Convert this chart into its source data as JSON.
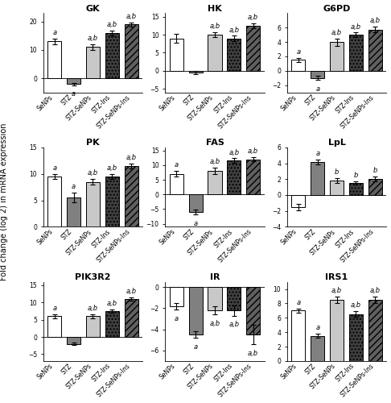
{
  "subplots": [
    {
      "title": "GK",
      "ylim": [
        -5,
        23
      ],
      "yticks": [
        0,
        10,
        20
      ],
      "values": [
        13,
        -2,
        11,
        16,
        19
      ],
      "errors": [
        1.0,
        0.4,
        0.9,
        0.8,
        0.8
      ],
      "annotations": [
        "a",
        "a",
        "a,b",
        "a,b",
        "a,b"
      ],
      "ann_neg": [
        false,
        true,
        false,
        false,
        false
      ]
    },
    {
      "title": "HK",
      "ylim": [
        -6,
        16
      ],
      "yticks": [
        -5,
        0,
        5,
        10,
        15
      ],
      "values": [
        9,
        -0.5,
        10,
        9,
        12.5
      ],
      "errors": [
        1.3,
        0.5,
        0.7,
        0.7,
        0.6
      ],
      "annotations": [
        "",
        "",
        "a,b",
        "a,b",
        "a,b"
      ],
      "ann_neg": [
        false,
        false,
        false,
        false,
        false
      ]
    },
    {
      "title": "G6PD",
      "ylim": [
        -3,
        8
      ],
      "yticks": [
        -2,
        0,
        2,
        4,
        6
      ],
      "values": [
        1.5,
        -1.0,
        4.0,
        5.0,
        5.7
      ],
      "errors": [
        0.25,
        0.3,
        0.5,
        0.3,
        0.4
      ],
      "annotations": [
        "a",
        "a",
        "a,b",
        "a,b",
        "a,b"
      ],
      "ann_neg": [
        false,
        true,
        false,
        false,
        false
      ]
    },
    {
      "title": "PK",
      "ylim": [
        0,
        15
      ],
      "yticks": [
        0,
        5,
        10,
        15
      ],
      "values": [
        9.5,
        5.5,
        8.5,
        9.5,
        11.5
      ],
      "errors": [
        0.5,
        0.9,
        0.5,
        0.5,
        0.5
      ],
      "annotations": [
        "a",
        "a",
        "a,b",
        "a,b",
        "a,b"
      ],
      "ann_neg": [
        false,
        false,
        false,
        false,
        false
      ]
    },
    {
      "title": "FAS",
      "ylim": [
        -11,
        16
      ],
      "yticks": [
        -10,
        -5,
        0,
        5,
        10,
        15
      ],
      "values": [
        7,
        -6,
        8,
        11.5,
        12
      ],
      "errors": [
        1.0,
        0.8,
        1.2,
        0.8,
        0.8
      ],
      "annotations": [
        "a",
        "a",
        "a,b",
        "a,b",
        "a,b"
      ],
      "ann_neg": [
        false,
        true,
        false,
        false,
        false
      ]
    },
    {
      "title": "LpL",
      "ylim": [
        -4,
        6
      ],
      "yticks": [
        -4,
        -2,
        0,
        2,
        4,
        6
      ],
      "values": [
        -1.5,
        4.2,
        1.8,
        1.5,
        2.0
      ],
      "errors": [
        0.4,
        0.3,
        0.3,
        0.2,
        0.3
      ],
      "annotations": [
        "",
        "a",
        "b",
        "b",
        "b"
      ],
      "ann_neg": [
        false,
        false,
        false,
        false,
        false
      ]
    },
    {
      "title": "PIK3R2",
      "ylim": [
        -7,
        16
      ],
      "yticks": [
        -5,
        0,
        5,
        10,
        15
      ],
      "values": [
        6,
        -2,
        6,
        7.5,
        11
      ],
      "errors": [
        0.5,
        0.3,
        0.5,
        0.5,
        0.5
      ],
      "annotations": [
        "a",
        "",
        "a,b",
        "a,b",
        "a,b"
      ],
      "ann_neg": [
        false,
        true,
        false,
        false,
        false
      ]
    },
    {
      "title": "IR",
      "ylim": [
        -7,
        0.5
      ],
      "yticks": [
        -6,
        -4,
        -2,
        0
      ],
      "values": [
        -1.8,
        -4.5,
        -2.2,
        -2.2,
        -4.5
      ],
      "errors": [
        0.3,
        0.3,
        0.4,
        0.5,
        0.9
      ],
      "annotations": [
        "a",
        "a",
        "a,b",
        "a,b",
        "a,b"
      ],
      "ann_neg": [
        true,
        true,
        true,
        true,
        true
      ]
    },
    {
      "title": "IRS1",
      "ylim": [
        0,
        11
      ],
      "yticks": [
        0,
        2,
        4,
        6,
        8,
        10
      ],
      "values": [
        7,
        3.5,
        8.5,
        6.5,
        8.5
      ],
      "errors": [
        0.3,
        0.3,
        0.4,
        0.4,
        0.4
      ],
      "annotations": [
        "a",
        "a",
        "a,b",
        "a,b",
        "a,b"
      ],
      "ann_neg": [
        false,
        false,
        false,
        false,
        false
      ]
    }
  ],
  "bar_colors": [
    "white",
    "#808080",
    "#c8c8c8",
    "#404040",
    "#606060"
  ],
  "bar_hatches": [
    "",
    "",
    "",
    "....",
    "////"
  ],
  "bar_edgecolor": "black",
  "categories": [
    "SeNPs",
    "STZ",
    "STZ-SeNPs",
    "STZ-Ins",
    "STZ-SeNPs-Ins"
  ],
  "ylabel": "Fold change (log 2) in mRNA expression",
  "figsize": [
    4.86,
    5.0
  ],
  "dpi": 100,
  "title_fontsize": 8,
  "tick_fontsize": 5.5,
  "ann_fontsize": 6,
  "label_fontsize": 7
}
